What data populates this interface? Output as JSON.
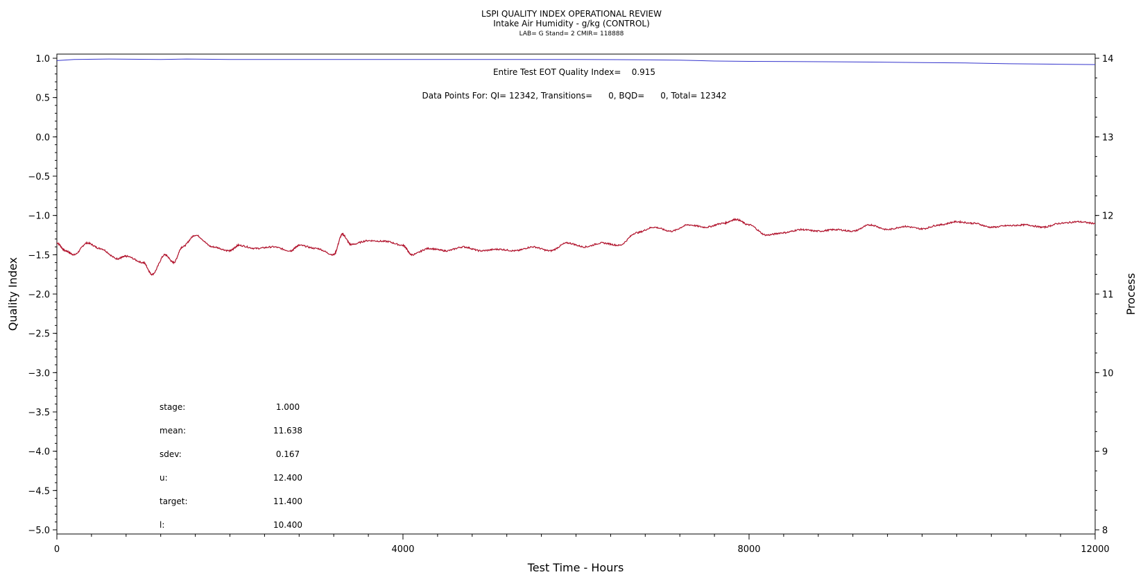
{
  "chart_data": {
    "type": "line",
    "title": "LSPI QUALITY INDEX OPERATIONAL REVIEW",
    "subtitle": "Intake Air Humidity - g/kg (CONTROL)",
    "subtitle2": "LAB= G Stand= 2 CMIR= 118888",
    "xlabel": "Test Time - Hours",
    "ylabel_left": "Quality Index",
    "ylabel_right": "Process",
    "xlim": [
      0,
      12000
    ],
    "ylim_left": [
      -5.0,
      1.0
    ],
    "ylim_right": [
      8,
      14
    ],
    "x_ticks": [
      "0",
      "4000",
      "8000",
      "12000"
    ],
    "y_left_ticks": [
      "1.0",
      "0.5",
      "0.0",
      "-0.5",
      "-1.0",
      "-1.5",
      "-2.0",
      "-2.5",
      "-3.0",
      "-3.5",
      "-4.0",
      "-4.5",
      "-5.0"
    ],
    "y_right_ticks": [
      "14",
      "13",
      "12",
      "11",
      "10",
      "9",
      "8"
    ],
    "annotation_eot": "Entire Test EOT Quality Index=    0.915",
    "annotation_points": "Data Points For: QI= 12342, Transitions=      0, BQD=      0, Total= 12342",
    "stats": [
      {
        "label": "stage:",
        "value": "1.000"
      },
      {
        "label": "mean:",
        "value": "11.638"
      },
      {
        "label": "sdev:",
        "value": "0.167"
      },
      {
        "label": "u:",
        "value": "12.400"
      },
      {
        "label": "target:",
        "value": "11.400"
      },
      {
        "label": "l:",
        "value": "10.400"
      }
    ],
    "series": [
      {
        "axis": "left",
        "color": "#3333cc",
        "x": [
          0,
          200,
          600,
          1200,
          1500,
          2000,
          3000,
          4000,
          5000,
          6000,
          6800,
          7200,
          7600,
          8000,
          9000,
          10000,
          10500,
          11000,
          11500,
          12000
        ],
        "values": [
          0.97,
          0.985,
          0.99,
          0.985,
          0.99,
          0.985,
          0.985,
          0.985,
          0.985,
          0.985,
          0.98,
          0.975,
          0.965,
          0.96,
          0.955,
          0.945,
          0.94,
          0.93,
          0.925,
          0.92
        ]
      },
      {
        "axis": "right",
        "color": "#b0102a",
        "x": [
          0,
          100,
          200,
          350,
          500,
          700,
          800,
          1000,
          1100,
          1250,
          1350,
          1450,
          1600,
          1800,
          2000,
          2100,
          2300,
          2500,
          2700,
          2800,
          3000,
          3200,
          3300,
          3400,
          3600,
          3800,
          4000,
          4100,
          4300,
          4500,
          4700,
          4900,
          5100,
          5300,
          5500,
          5700,
          5900,
          6100,
          6300,
          6500,
          6700,
          6900,
          7100,
          7300,
          7500,
          7700,
          7850,
          8000,
          8200,
          8400,
          8600,
          8800,
          9000,
          9200,
          9400,
          9600,
          9800,
          10000,
          10200,
          10400,
          10600,
          10800,
          11000,
          11200,
          11400,
          11600,
          11800,
          12000
        ],
        "values": [
          11.65,
          11.55,
          11.5,
          11.65,
          11.58,
          11.45,
          11.48,
          11.4,
          11.25,
          11.5,
          11.4,
          11.6,
          11.75,
          11.6,
          11.55,
          11.62,
          11.58,
          11.6,
          11.55,
          11.62,
          11.58,
          11.5,
          11.76,
          11.63,
          11.68,
          11.67,
          11.62,
          11.5,
          11.58,
          11.55,
          11.6,
          11.55,
          11.57,
          11.55,
          11.6,
          11.55,
          11.65,
          11.6,
          11.65,
          11.62,
          11.78,
          11.85,
          11.8,
          11.88,
          11.85,
          11.9,
          11.95,
          11.88,
          11.75,
          11.78,
          11.82,
          11.8,
          11.82,
          11.8,
          11.88,
          11.82,
          11.86,
          11.83,
          11.88,
          11.92,
          11.9,
          11.85,
          11.87,
          11.88,
          11.85,
          11.9,
          11.92,
          11.9
        ]
      }
    ]
  }
}
